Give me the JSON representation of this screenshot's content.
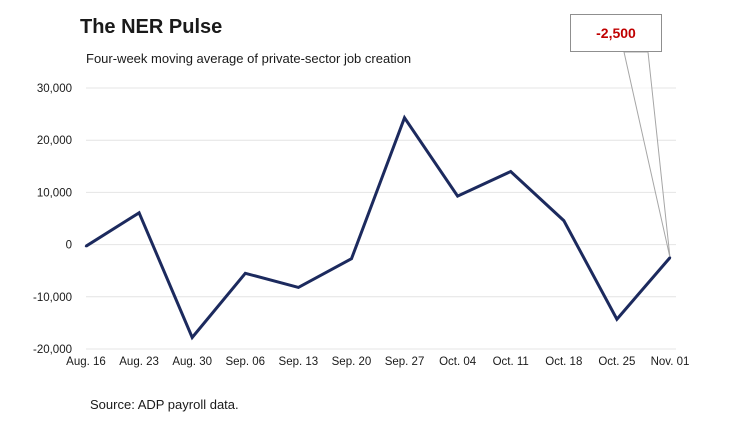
{
  "chart_data": {
    "type": "line",
    "title": "The NER Pulse",
    "subtitle": "Four-week moving average of private-sector job creation",
    "source": "Source: ADP payroll data.",
    "callout": "-2,500",
    "categories": [
      "Aug. 16",
      "Aug. 23",
      "Aug. 30",
      "Sep. 06",
      "Sep. 13",
      "Sep. 20",
      "Sep. 27",
      "Oct. 04",
      "Oct. 11",
      "Oct. 18",
      "Oct. 25",
      "Nov. 01"
    ],
    "series": [
      {
        "values": [
          -300,
          6100,
          -17800,
          -5500,
          -8200,
          -2700,
          24300,
          9300,
          14000,
          4600,
          -14300,
          -2500
        ],
        "color": "#1c2a5e"
      }
    ],
    "yticks": [
      30000,
      20000,
      10000,
      0,
      -10000,
      -20000
    ],
    "ytick_labels": [
      "30,000",
      "20,000",
      "10,000",
      "0",
      "-10,000",
      "-20,000"
    ],
    "ylim": [
      -20000,
      30000
    ],
    "grid": true,
    "legend": "none"
  }
}
